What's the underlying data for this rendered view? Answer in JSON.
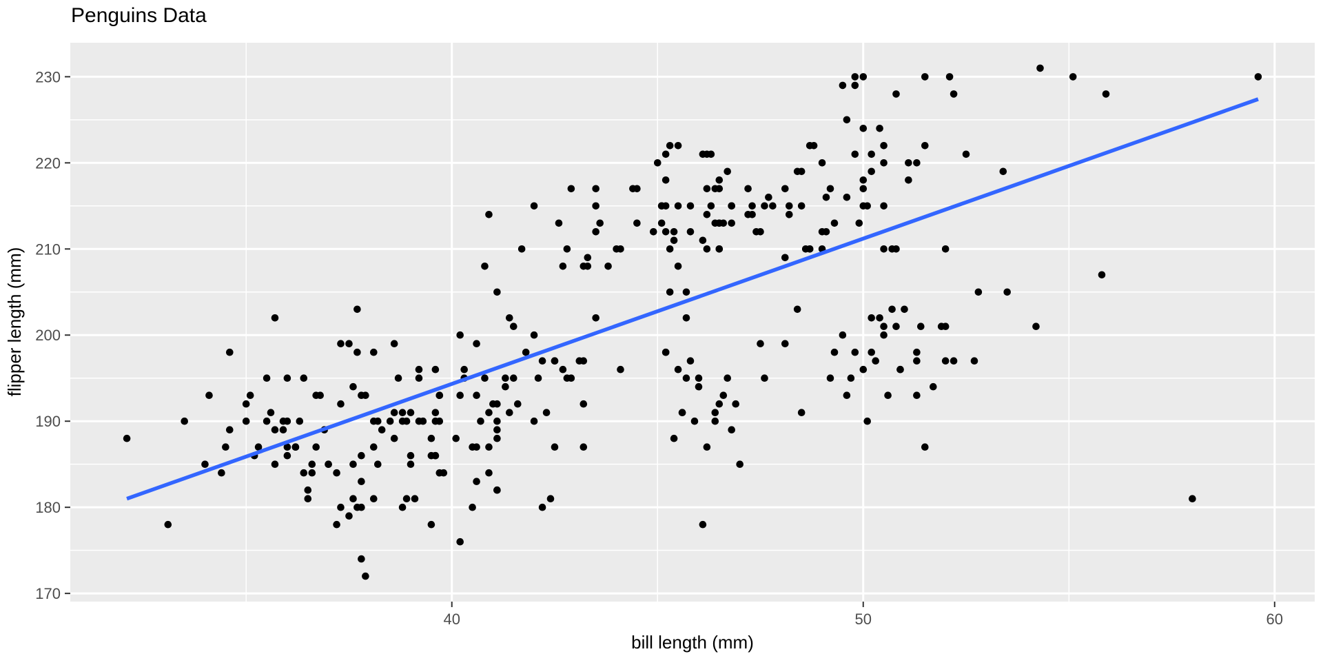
{
  "page": {
    "title": "Penguins Data"
  },
  "chart_data": {
    "type": "scatter",
    "title": "Penguins Data",
    "xlabel": "bill length (mm)",
    "ylabel": "flipper length (mm)",
    "xlim": [
      30.725,
      60.975
    ],
    "ylim": [
      169.05,
      233.95
    ],
    "x_ticks": [
      40,
      50,
      60
    ],
    "y_ticks": [
      170,
      180,
      190,
      200,
      210,
      220,
      230
    ],
    "x_minor_ticks": [
      35,
      45,
      55
    ],
    "y_minor_ticks": [
      175,
      185,
      195,
      205,
      215,
      225
    ],
    "grid": true,
    "legend": "none",
    "colors": {
      "panel_bg": "#EBEBEB",
      "grid": "#FFFFFF",
      "point": "#000000",
      "trend": "#3366FF",
      "tick_mark": "#333333",
      "tick_label": "#4D4D4D"
    },
    "trend": {
      "type": "linear",
      "x1": 32.1,
      "y1": 181.0,
      "x2": 59.6,
      "y2": 227.4
    },
    "points": [
      [
        39.1,
        181
      ],
      [
        39.5,
        186
      ],
      [
        40.3,
        195
      ],
      [
        36.7,
        193
      ],
      [
        39.3,
        190
      ],
      [
        38.9,
        181
      ],
      [
        39.2,
        195
      ],
      [
        34.1,
        193
      ],
      [
        42.0,
        190
      ],
      [
        37.8,
        186
      ],
      [
        37.8,
        180
      ],
      [
        41.1,
        182
      ],
      [
        38.6,
        191
      ],
      [
        34.6,
        198
      ],
      [
        36.6,
        185
      ],
      [
        38.7,
        195
      ],
      [
        42.5,
        197
      ],
      [
        34.4,
        184
      ],
      [
        46.0,
        194
      ],
      [
        37.8,
        174
      ],
      [
        37.7,
        180
      ],
      [
        35.9,
        189
      ],
      [
        38.2,
        185
      ],
      [
        38.8,
        180
      ],
      [
        35.3,
        187
      ],
      [
        40.6,
        183
      ],
      [
        40.5,
        187
      ],
      [
        37.9,
        172
      ],
      [
        40.5,
        180
      ],
      [
        39.5,
        178
      ],
      [
        37.2,
        178
      ],
      [
        39.5,
        188
      ],
      [
        40.9,
        184
      ],
      [
        36.4,
        195
      ],
      [
        39.2,
        196
      ],
      [
        38.8,
        190
      ],
      [
        42.2,
        180
      ],
      [
        37.6,
        181
      ],
      [
        39.8,
        184
      ],
      [
        36.5,
        182
      ],
      [
        40.8,
        195
      ],
      [
        36.0,
        186
      ],
      [
        44.1,
        196
      ],
      [
        37.0,
        185
      ],
      [
        39.6,
        190
      ],
      [
        41.1,
        182
      ],
      [
        37.5,
        179
      ],
      [
        36.0,
        190
      ],
      [
        42.3,
        191
      ],
      [
        39.6,
        186
      ],
      [
        40.1,
        188
      ],
      [
        35.0,
        190
      ],
      [
        42.0,
        200
      ],
      [
        34.5,
        187
      ],
      [
        41.4,
        191
      ],
      [
        39.0,
        186
      ],
      [
        40.6,
        193
      ],
      [
        36.5,
        181
      ],
      [
        37.6,
        194
      ],
      [
        35.7,
        185
      ],
      [
        41.3,
        195
      ],
      [
        37.6,
        185
      ],
      [
        41.1,
        192
      ],
      [
        36.4,
        184
      ],
      [
        41.6,
        192
      ],
      [
        35.5,
        195
      ],
      [
        41.1,
        188
      ],
      [
        35.9,
        190
      ],
      [
        41.8,
        198
      ],
      [
        33.5,
        190
      ],
      [
        39.7,
        190
      ],
      [
        39.6,
        196
      ],
      [
        45.8,
        197
      ],
      [
        35.5,
        190
      ],
      [
        42.8,
        195
      ],
      [
        40.9,
        191
      ],
      [
        37.2,
        184
      ],
      [
        36.2,
        187
      ],
      [
        42.1,
        195
      ],
      [
        34.6,
        189
      ],
      [
        42.9,
        195
      ],
      [
        36.7,
        187
      ],
      [
        35.1,
        193
      ],
      [
        37.3,
        180
      ],
      [
        41.3,
        194
      ],
      [
        36.3,
        190
      ],
      [
        36.9,
        189
      ],
      [
        38.3,
        189
      ],
      [
        38.9,
        190
      ],
      [
        35.7,
        202
      ],
      [
        41.1,
        205
      ],
      [
        34.0,
        185
      ],
      [
        39.6,
        186
      ],
      [
        36.2,
        187
      ],
      [
        40.8,
        208
      ],
      [
        38.1,
        190
      ],
      [
        40.3,
        196
      ],
      [
        33.1,
        178
      ],
      [
        43.2,
        192
      ],
      [
        35.0,
        192
      ],
      [
        41.0,
        192
      ],
      [
        37.7,
        203
      ],
      [
        37.8,
        183
      ],
      [
        37.9,
        193
      ],
      [
        39.7,
        184
      ],
      [
        38.6,
        199
      ],
      [
        38.2,
        190
      ],
      [
        38.1,
        181
      ],
      [
        43.2,
        197
      ],
      [
        38.1,
        198
      ],
      [
        45.6,
        191
      ],
      [
        39.7,
        193
      ],
      [
        42.2,
        197
      ],
      [
        39.6,
        191
      ],
      [
        42.7,
        196
      ],
      [
        38.6,
        188
      ],
      [
        37.3,
        199
      ],
      [
        35.7,
        189
      ],
      [
        41.1,
        189
      ],
      [
        36.2,
        187
      ],
      [
        37.7,
        198
      ],
      [
        40.2,
        176
      ],
      [
        41.4,
        202
      ],
      [
        35.2,
        186
      ],
      [
        40.6,
        199
      ],
      [
        38.8,
        191
      ],
      [
        41.5,
        195
      ],
      [
        39.0,
        191
      ],
      [
        44.1,
        210
      ],
      [
        38.5,
        190
      ],
      [
        43.1,
        197
      ],
      [
        36.8,
        193
      ],
      [
        37.5,
        199
      ],
      [
        38.1,
        187
      ],
      [
        41.1,
        190
      ],
      [
        35.6,
        191
      ],
      [
        40.2,
        200
      ],
      [
        37.0,
        185
      ],
      [
        39.7,
        193
      ],
      [
        40.2,
        193
      ],
      [
        40.6,
        187
      ],
      [
        32.1,
        188
      ],
      [
        40.7,
        190
      ],
      [
        37.3,
        192
      ],
      [
        39.0,
        185
      ],
      [
        39.2,
        190
      ],
      [
        36.6,
        184
      ],
      [
        36.0,
        195
      ],
      [
        37.8,
        193
      ],
      [
        36.0,
        187
      ],
      [
        41.5,
        201
      ],
      [
        46.1,
        211
      ],
      [
        50.0,
        230
      ],
      [
        48.7,
        210
      ],
      [
        50.0,
        218
      ],
      [
        47.6,
        215
      ],
      [
        46.5,
        210
      ],
      [
        45.4,
        211
      ],
      [
        46.7,
        219
      ],
      [
        43.3,
        209
      ],
      [
        46.8,
        215
      ],
      [
        40.9,
        214
      ],
      [
        49.0,
        220
      ],
      [
        45.5,
        222
      ],
      [
        48.4,
        219
      ],
      [
        45.8,
        215
      ],
      [
        49.3,
        213
      ],
      [
        42.0,
        215
      ],
      [
        49.2,
        217
      ],
      [
        46.2,
        221
      ],
      [
        48.7,
        222
      ],
      [
        50.2,
        221
      ],
      [
        45.1,
        213
      ],
      [
        46.5,
        217
      ],
      [
        46.3,
        221
      ],
      [
        42.9,
        217
      ],
      [
        46.1,
        221
      ],
      [
        44.5,
        213
      ],
      [
        47.8,
        215
      ],
      [
        48.2,
        215
      ],
      [
        50.0,
        215
      ],
      [
        47.3,
        215
      ],
      [
        42.8,
        210
      ],
      [
        45.1,
        215
      ],
      [
        59.6,
        230
      ],
      [
        49.1,
        212
      ],
      [
        48.4,
        203
      ],
      [
        42.6,
        213
      ],
      [
        44.4,
        217
      ],
      [
        44.0,
        210
      ],
      [
        48.7,
        210
      ],
      [
        42.7,
        208
      ],
      [
        49.6,
        216
      ],
      [
        45.3,
        222
      ],
      [
        49.6,
        225
      ],
      [
        50.5,
        210
      ],
      [
        43.6,
        213
      ],
      [
        45.5,
        215
      ],
      [
        50.5,
        222
      ],
      [
        44.9,
        212
      ],
      [
        45.2,
        221
      ],
      [
        46.6,
        213
      ],
      [
        48.5,
        215
      ],
      [
        45.1,
        215
      ],
      [
        50.1,
        215
      ],
      [
        46.5,
        213
      ],
      [
        45.0,
        220
      ],
      [
        43.8,
        208
      ],
      [
        45.5,
        208
      ],
      [
        43.2,
        208
      ],
      [
        50.4,
        202
      ],
      [
        45.3,
        205
      ],
      [
        46.2,
        210
      ],
      [
        45.7,
        205
      ],
      [
        54.3,
        231
      ],
      [
        45.8,
        212
      ],
      [
        49.8,
        230
      ],
      [
        46.5,
        218
      ],
      [
        43.5,
        215
      ],
      [
        50.7,
        210
      ],
      [
        47.7,
        216
      ],
      [
        46.4,
        213
      ],
      [
        48.2,
        214
      ],
      [
        46.5,
        210
      ],
      [
        46.4,
        217
      ],
      [
        48.6,
        210
      ],
      [
        47.5,
        212
      ],
      [
        51.1,
        220
      ],
      [
        45.2,
        218
      ],
      [
        45.2,
        215
      ],
      [
        46.3,
        215
      ],
      [
        43.5,
        217
      ],
      [
        48.1,
        217
      ],
      [
        50.5,
        220
      ],
      [
        49.8,
        229
      ],
      [
        46.2,
        217
      ],
      [
        51.5,
        222
      ],
      [
        55.1,
        230
      ],
      [
        44.5,
        217
      ],
      [
        48.8,
        222
      ],
      [
        47.2,
        214
      ],
      [
        46.8,
        215
      ],
      [
        50.4,
        224
      ],
      [
        45.2,
        212
      ],
      [
        49.9,
        213
      ],
      [
        50.0,
        224
      ],
      [
        51.3,
        220
      ],
      [
        45.4,
        212
      ],
      [
        52.1,
        230
      ],
      [
        52.2,
        228
      ],
      [
        49.5,
        229
      ],
      [
        46.5,
        213
      ],
      [
        50.0,
        217
      ],
      [
        51.1,
        218
      ],
      [
        48.5,
        219
      ],
      [
        55.9,
        228
      ],
      [
        47.2,
        217
      ],
      [
        49.1,
        216
      ],
      [
        47.3,
        214
      ],
      [
        46.8,
        213
      ],
      [
        41.7,
        210
      ],
      [
        53.4,
        219
      ],
      [
        43.3,
        208
      ],
      [
        48.1,
        209
      ],
      [
        50.5,
        215
      ],
      [
        49.8,
        221
      ],
      [
        43.5,
        212
      ],
      [
        46.2,
        214
      ],
      [
        51.5,
        230
      ],
      [
        52.5,
        221
      ],
      [
        47.4,
        212
      ],
      [
        50.2,
        219
      ],
      [
        45.3,
        210
      ],
      [
        50.8,
        228
      ],
      [
        46.5,
        192
      ],
      [
        50.0,
        196
      ],
      [
        51.3,
        193
      ],
      [
        45.4,
        188
      ],
      [
        52.7,
        197
      ],
      [
        45.2,
        198
      ],
      [
        46.1,
        178
      ],
      [
        51.3,
        197
      ],
      [
        46.0,
        195
      ],
      [
        51.3,
        198
      ],
      [
        46.6,
        193
      ],
      [
        51.7,
        194
      ],
      [
        47.0,
        185
      ],
      [
        52.0,
        201
      ],
      [
        45.9,
        190
      ],
      [
        50.5,
        201
      ],
      [
        50.3,
        197
      ],
      [
        58.0,
        181
      ],
      [
        46.4,
        190
      ],
      [
        49.2,
        195
      ],
      [
        42.4,
        181
      ],
      [
        48.5,
        191
      ],
      [
        43.2,
        187
      ],
      [
        50.6,
        193
      ],
      [
        46.7,
        195
      ],
      [
        52.0,
        197
      ],
      [
        50.5,
        200
      ],
      [
        49.5,
        200
      ],
      [
        46.4,
        191
      ],
      [
        52.8,
        205
      ],
      [
        40.9,
        187
      ],
      [
        54.2,
        201
      ],
      [
        42.5,
        187
      ],
      [
        51.0,
        203
      ],
      [
        49.7,
        195
      ],
      [
        47.5,
        199
      ],
      [
        47.6,
        195
      ],
      [
        52.0,
        210
      ],
      [
        46.9,
        192
      ],
      [
        53.5,
        205
      ],
      [
        49.0,
        210
      ],
      [
        46.2,
        187
      ],
      [
        50.9,
        196
      ],
      [
        45.5,
        196
      ],
      [
        50.9,
        196
      ],
      [
        50.8,
        201
      ],
      [
        50.1,
        190
      ],
      [
        49.0,
        212
      ],
      [
        51.5,
        187
      ],
      [
        49.8,
        198
      ],
      [
        48.1,
        199
      ],
      [
        51.4,
        201
      ],
      [
        45.7,
        195
      ],
      [
        50.7,
        203
      ],
      [
        42.5,
        197
      ],
      [
        52.2,
        197
      ],
      [
        45.2,
        198
      ],
      [
        49.3,
        198
      ],
      [
        50.2,
        202
      ],
      [
        45.6,
        191
      ],
      [
        51.9,
        201
      ],
      [
        46.8,
        189
      ],
      [
        45.7,
        202
      ],
      [
        55.8,
        207
      ],
      [
        43.5,
        202
      ],
      [
        49.6,
        193
      ],
      [
        50.8,
        210
      ],
      [
        50.2,
        198
      ]
    ]
  }
}
